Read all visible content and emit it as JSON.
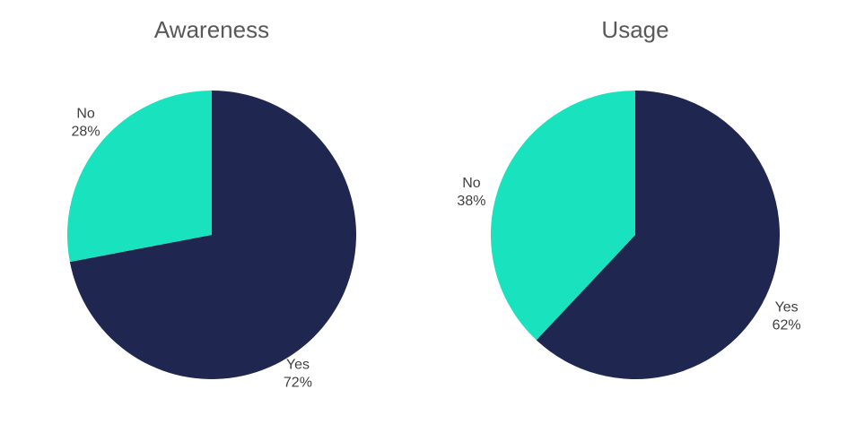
{
  "chart_data": [
    {
      "type": "pie",
      "title": "Awareness",
      "slices": [
        {
          "label": "Yes",
          "value": 72,
          "value_label": "72%",
          "color": "#1f2751"
        },
        {
          "label": "No",
          "value": 28,
          "value_label": "28%",
          "color": "#19e3bf"
        }
      ],
      "start_angle_deg": 0,
      "direction": "clockwise",
      "legend": "none"
    },
    {
      "type": "pie",
      "title": "Usage",
      "slices": [
        {
          "label": "Yes",
          "value": 62,
          "value_label": "62%",
          "color": "#1f2751"
        },
        {
          "label": "No",
          "value": 38,
          "value_label": "38%",
          "color": "#19e3bf"
        }
      ],
      "start_angle_deg": 0,
      "direction": "clockwise",
      "legend": "none"
    }
  ]
}
